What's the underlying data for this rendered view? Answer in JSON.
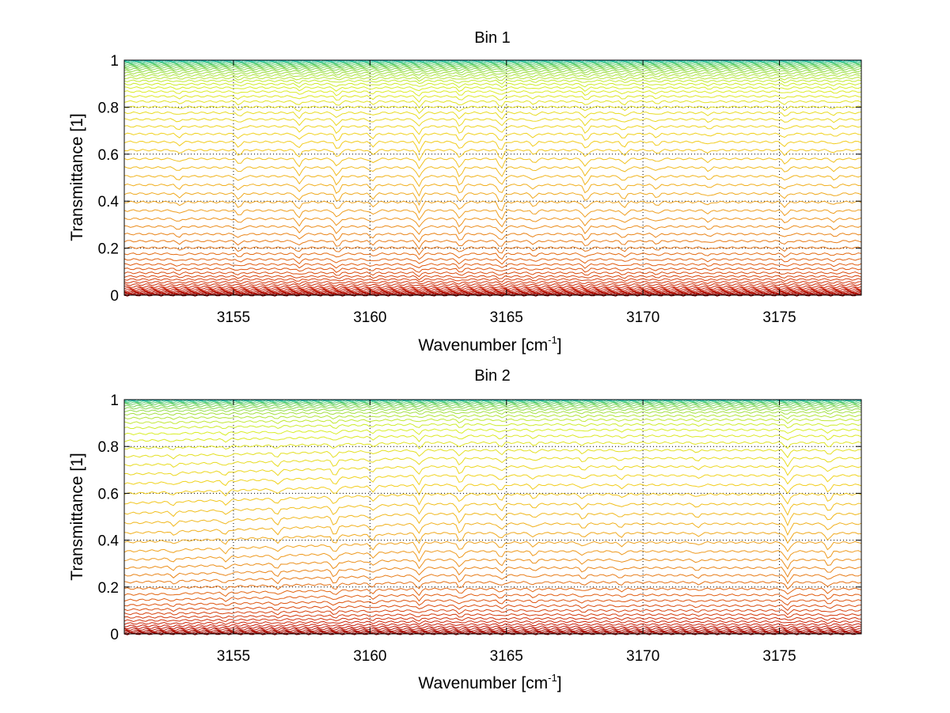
{
  "chart_data": [
    {
      "type": "line",
      "title": "Bin 1",
      "xlabel": "Wavenumber [cm",
      "xlabel_sup": "-1",
      "xlabel_close": "]",
      "ylabel": "Transmittance [1]",
      "xlim": [
        3151,
        3178
      ],
      "ylim": [
        0,
        1
      ],
      "x_ticks": [
        3155,
        3160,
        3165,
        3170,
        3175
      ],
      "x_tick_labels": [
        "3155",
        "3160",
        "3165",
        "3170",
        "3175"
      ],
      "y_ticks": [
        0,
        0.2,
        0.4,
        0.6,
        0.8,
        1
      ],
      "y_tick_labels": [
        "0",
        "0.2",
        "0.4",
        "0.6",
        "0.8",
        "1"
      ],
      "grid": true,
      "colormap": [
        "#8b0000",
        "#c81e0a",
        "#e05a10",
        "#f0a020",
        "#f2d01e",
        "#d8ef28",
        "#7ad45a",
        "#20c0c0"
      ],
      "series_baselines": [
        0.0,
        0.002,
        0.004,
        0.006,
        0.008,
        0.011,
        0.014,
        0.018,
        0.023,
        0.029,
        0.036,
        0.045,
        0.055,
        0.067,
        0.08,
        0.095,
        0.112,
        0.131,
        0.152,
        0.176,
        0.202,
        0.23,
        0.26,
        0.292,
        0.325,
        0.36,
        0.396,
        0.432,
        0.469,
        0.506,
        0.543,
        0.58,
        0.617,
        0.652,
        0.686,
        0.718,
        0.748,
        0.776,
        0.801,
        0.824,
        0.846,
        0.866,
        0.883,
        0.898,
        0.912,
        0.924,
        0.935,
        0.945,
        0.954,
        0.962,
        0.969,
        0.975,
        0.98,
        0.985,
        0.989,
        0.992,
        0.995,
        0.997,
        0.999,
        1.0
      ],
      "series_drift_left": 0.0,
      "absorption_lines": [
        {
          "x": 3153.0,
          "depth": 0.35
        },
        {
          "x": 3155.2,
          "depth": 0.5
        },
        {
          "x": 3157.4,
          "depth": 0.7
        },
        {
          "x": 3158.8,
          "depth": 0.8
        },
        {
          "x": 3160.1,
          "depth": 0.45
        },
        {
          "x": 3161.8,
          "depth": 1.0
        },
        {
          "x": 3163.3,
          "depth": 0.85
        },
        {
          "x": 3164.8,
          "depth": 0.9
        },
        {
          "x": 3166.0,
          "depth": 0.4
        },
        {
          "x": 3167.9,
          "depth": 0.75
        },
        {
          "x": 3169.3,
          "depth": 0.5
        },
        {
          "x": 3170.5,
          "depth": 0.35
        },
        {
          "x": 3172.4,
          "depth": 0.3
        },
        {
          "x": 3175.2,
          "depth": 0.45
        },
        {
          "x": 3177.0,
          "depth": 0.3
        }
      ]
    },
    {
      "type": "line",
      "title": "Bin 2",
      "xlabel": "Wavenumber [cm",
      "xlabel_sup": "-1",
      "xlabel_close": "]",
      "ylabel": "Transmittance [1]",
      "xlim": [
        3151,
        3178
      ],
      "ylim": [
        0,
        1
      ],
      "x_ticks": [
        3155,
        3160,
        3165,
        3170,
        3175
      ],
      "x_tick_labels": [
        "3155",
        "3160",
        "3165",
        "3170",
        "3175"
      ],
      "y_ticks": [
        0,
        0.2,
        0.4,
        0.6,
        0.8,
        1
      ],
      "y_tick_labels": [
        "0",
        "0.2",
        "0.4",
        "0.6",
        "0.8",
        "1"
      ],
      "grid": true,
      "colormap": [
        "#8b0000",
        "#c81e0a",
        "#e05a10",
        "#f0a020",
        "#f2d01e",
        "#d8ef28",
        "#7ad45a",
        "#20c0c0"
      ],
      "series_baselines": [
        0.0,
        0.003,
        0.006,
        0.01,
        0.015,
        0.022,
        0.03,
        0.04,
        0.052,
        0.066,
        0.082,
        0.1,
        0.12,
        0.142,
        0.166,
        0.192,
        0.22,
        0.25,
        0.282,
        0.316,
        0.352,
        0.39,
        0.43,
        0.47,
        0.512,
        0.554,
        0.596,
        0.636,
        0.676,
        0.714,
        0.75,
        0.784,
        0.816,
        0.845,
        0.871,
        0.894,
        0.914,
        0.931,
        0.946,
        0.958,
        0.968,
        0.976,
        0.983,
        0.988,
        0.992,
        0.995,
        0.997,
        0.999,
        1.0
      ],
      "series_drift_left": 0.1,
      "absorption_lines": [
        {
          "x": 3152.8,
          "depth": 0.35
        },
        {
          "x": 3154.7,
          "depth": 0.45
        },
        {
          "x": 3156.6,
          "depth": 0.55
        },
        {
          "x": 3158.7,
          "depth": 0.8
        },
        {
          "x": 3160.1,
          "depth": 0.5
        },
        {
          "x": 3161.8,
          "depth": 0.95
        },
        {
          "x": 3163.3,
          "depth": 0.85
        },
        {
          "x": 3164.8,
          "depth": 0.6
        },
        {
          "x": 3166.0,
          "depth": 0.4
        },
        {
          "x": 3167.8,
          "depth": 0.45
        },
        {
          "x": 3169.2,
          "depth": 0.35
        },
        {
          "x": 3172.0,
          "depth": 0.3
        },
        {
          "x": 3175.3,
          "depth": 1.0
        },
        {
          "x": 3176.8,
          "depth": 0.7
        }
      ]
    }
  ]
}
